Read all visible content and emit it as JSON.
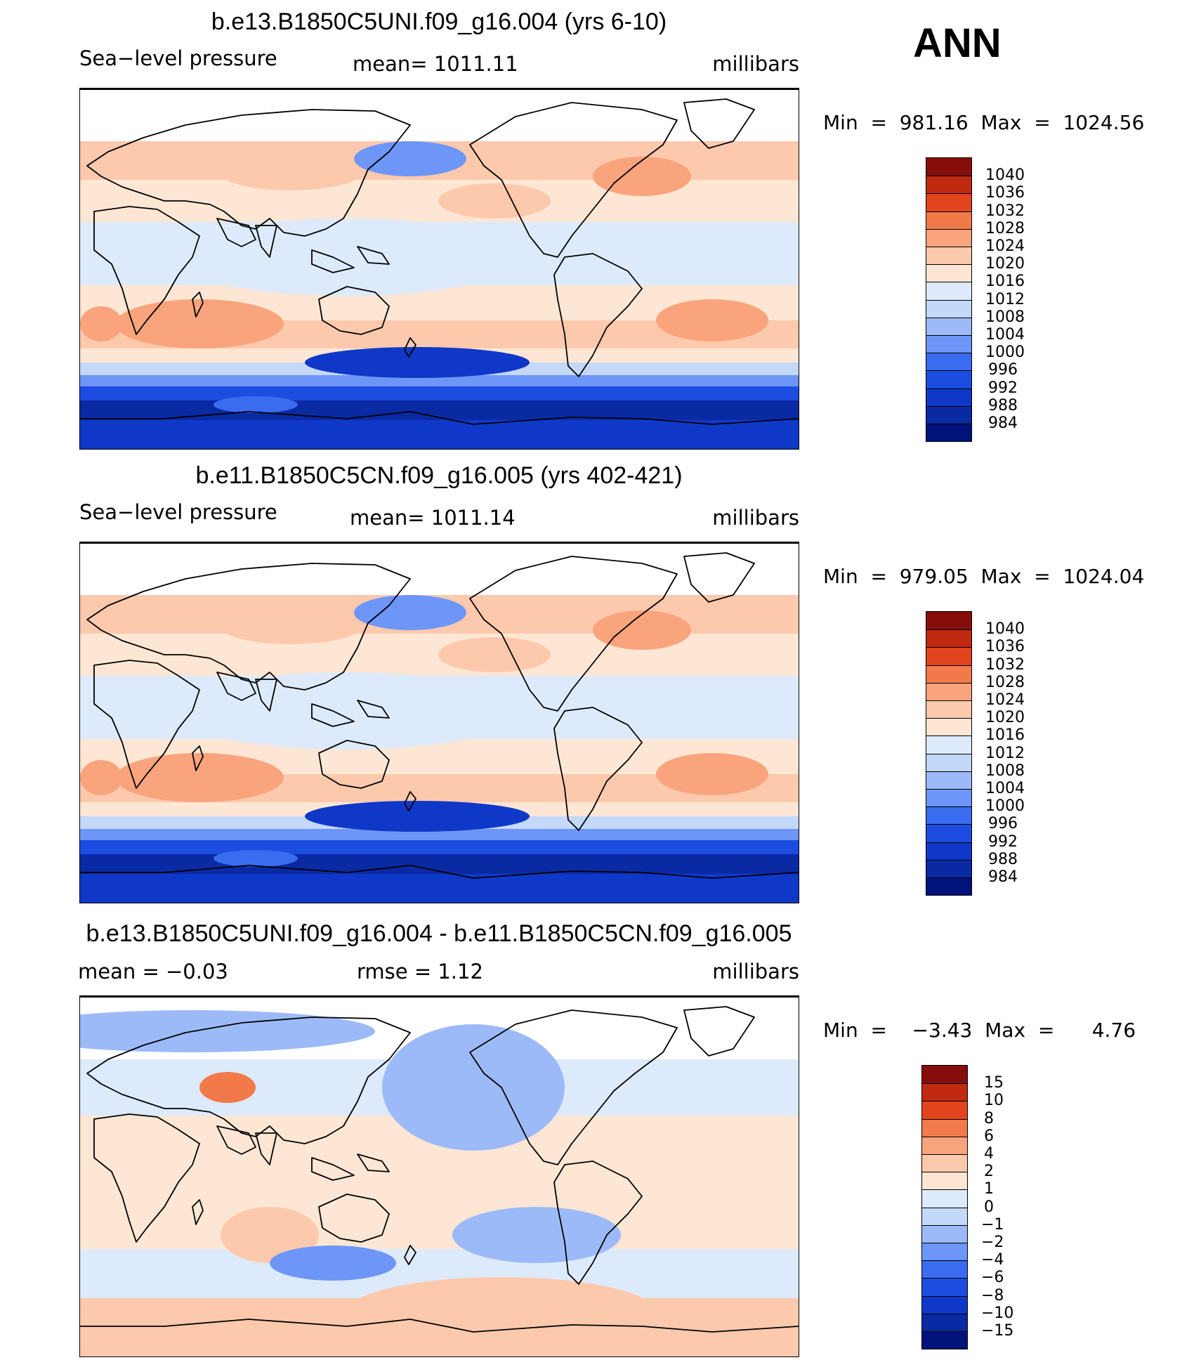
{
  "season": "ANN",
  "units": "millibars",
  "panels": [
    {
      "title": "b.e13.B1850C5UNI.f09_g16.004 (yrs 6-10)",
      "left_label": "Sea−level pressure",
      "mid_label": "mean=  1011.11",
      "right_label": "millibars",
      "minmax": "Min  =  981.16  Max  =  1024.56",
      "kind": "abs"
    },
    {
      "title": "b.e11.B1850C5CN.f09_g16.005 (yrs 402-421)",
      "left_label": "Sea−level pressure",
      "mid_label": "mean=  1011.14",
      "right_label": "millibars",
      "minmax": "Min  =  979.05  Max  =  1024.04",
      "kind": "abs"
    },
    {
      "title": "b.e13.B1850C5UNI.f09_g16.004 - b.e11.B1850C5CN.f09_g16.005",
      "left_label": "mean  =    −0.03",
      "mid_label": "rmse  =      1.12",
      "right_label": "millibars",
      "minmax": "Min  =    −3.43  Max  =      4.76",
      "kind": "diff"
    }
  ],
  "chart_data": [
    {
      "type": "heatmap",
      "title": "b.e13.B1850C5UNI.f09_g16.004 (yrs 6-10)",
      "variable": "Sea-level pressure",
      "units": "millibars",
      "mean": 1011.11,
      "min": 981.16,
      "max": 1024.56,
      "contour_levels": [
        984,
        988,
        992,
        996,
        1000,
        1004,
        1008,
        1012,
        1016,
        1020,
        1024,
        1028,
        1032,
        1036,
        1040
      ],
      "colors": [
        "#00137a",
        "#0a2aa4",
        "#1038c8",
        "#1c4de0",
        "#3a6cf0",
        "#6e96f8",
        "#9dbaf8",
        "#c4d8fa",
        "#ddeafb",
        "#fde6d4",
        "#fcc9ad",
        "#f9a47c",
        "#f27a4a",
        "#e2451e",
        "#c02a10",
        "#860e0a"
      ]
    },
    {
      "type": "heatmap",
      "title": "b.e11.B1850C5CN.f09_g16.005 (yrs 402-421)",
      "variable": "Sea-level pressure",
      "units": "millibars",
      "mean": 1011.14,
      "min": 979.05,
      "max": 1024.04,
      "contour_levels": [
        984,
        988,
        992,
        996,
        1000,
        1004,
        1008,
        1012,
        1016,
        1020,
        1024,
        1028,
        1032,
        1036,
        1040
      ],
      "colors": [
        "#00137a",
        "#0a2aa4",
        "#1038c8",
        "#1c4de0",
        "#3a6cf0",
        "#6e96f8",
        "#9dbaf8",
        "#c4d8fa",
        "#ddeafb",
        "#fde6d4",
        "#fcc9ad",
        "#f9a47c",
        "#f27a4a",
        "#e2451e",
        "#c02a10",
        "#860e0a"
      ]
    },
    {
      "type": "heatmap",
      "title": "b.e13.B1850C5UNI.f09_g16.004 - b.e11.B1850C5CN.f09_g16.005",
      "units": "millibars",
      "mean": -0.03,
      "rmse": 1.12,
      "min": -3.43,
      "max": 4.76,
      "contour_levels": [
        -15,
        -10,
        -8,
        -6,
        -4,
        -2,
        -1,
        0,
        1,
        2,
        4,
        6,
        8,
        10,
        15
      ],
      "colors": [
        "#00137a",
        "#0a2aa4",
        "#1038c8",
        "#1c4de0",
        "#3a6cf0",
        "#6e96f8",
        "#9dbaf8",
        "#c4d8fa",
        "#ddeafb",
        "#fde6d4",
        "#fcc9ad",
        "#f9a47c",
        "#f27a4a",
        "#e2451e",
        "#c02a10",
        "#860e0a"
      ]
    }
  ]
}
